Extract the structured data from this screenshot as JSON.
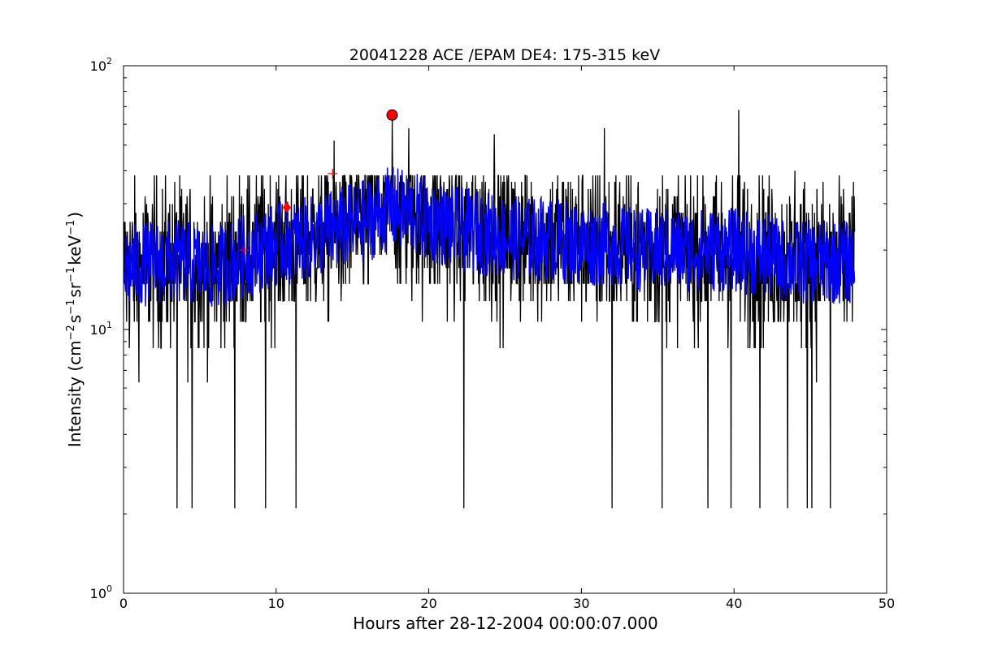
{
  "chart_data": {
    "type": "line",
    "title": "20041228 ACE /EPAM DE4: 175-315 keV",
    "xlabel": "Hours after 28-12-2004 00:00:07.000",
    "ylabel": "Intensity (cm",
    "ylabel_parts": [
      "Intensity (cm",
      "−2",
      "s",
      "−1",
      "sr",
      "−1",
      "keV",
      "−1",
      ")"
    ],
    "xlim": [
      0,
      50
    ],
    "ylim": [
      1,
      100
    ],
    "yscale": "log",
    "x_ticks": [
      "0",
      "10",
      "20",
      "30",
      "40",
      "50"
    ],
    "y_ticks": [
      {
        "base": "10",
        "exp": "0"
      },
      {
        "base": "10",
        "exp": "1"
      },
      {
        "base": "10",
        "exp": "2"
      }
    ],
    "grid": false,
    "series": [
      {
        "role": "raw",
        "color": "#000000",
        "x_range": [
          0,
          47.9
        ],
        "typical_range": [
          6.3,
          36
        ],
        "x": [
          0.0,
          2.0,
          4.0,
          6.0,
          8.0,
          10.0,
          12.0,
          14.0,
          16.0,
          17.6,
          20.0,
          22.0,
          24.0,
          26.0,
          28.0,
          30.0,
          32.0,
          34.0,
          36.0,
          38.0,
          40.0,
          42.0,
          44.0,
          46.0,
          47.9
        ],
        "trend": [
          17,
          18,
          18,
          17,
          19,
          21,
          22,
          24,
          26,
          29,
          26,
          24,
          23,
          22,
          22,
          21,
          21,
          20,
          20,
          20,
          20,
          19,
          18,
          18,
          18
        ],
        "minima": [
          {
            "x": 3.5,
            "y": 2.1
          },
          {
            "x": 4.5,
            "y": 2.1
          },
          {
            "x": 7.3,
            "y": 2.1
          },
          {
            "x": 9.3,
            "y": 2.1
          },
          {
            "x": 11.3,
            "y": 2.1
          },
          {
            "x": 22.3,
            "y": 2.1
          },
          {
            "x": 32.0,
            "y": 2.1
          },
          {
            "x": 35.3,
            "y": 2.1
          },
          {
            "x": 38.3,
            "y": 2.1
          },
          {
            "x": 39.8,
            "y": 2.1
          },
          {
            "x": 41.7,
            "y": 2.1
          },
          {
            "x": 43.5,
            "y": 2.1
          },
          {
            "x": 44.8,
            "y": 2.1
          },
          {
            "x": 45.1,
            "y": 2.1
          },
          {
            "x": 46.3,
            "y": 2.1
          }
        ],
        "maxima": [
          {
            "x": 13.8,
            "y": 52
          },
          {
            "x": 17.6,
            "y": 65
          },
          {
            "x": 18.7,
            "y": 58
          },
          {
            "x": 24.3,
            "y": 55
          },
          {
            "x": 31.5,
            "y": 58
          },
          {
            "x": 40.3,
            "y": 68
          },
          {
            "x": 44.0,
            "y": 40
          }
        ]
      },
      {
        "role": "smoothed",
        "color": "#0000ff",
        "x": [
          0.0,
          2.0,
          4.0,
          6.0,
          8.0,
          10.0,
          12.0,
          14.0,
          16.0,
          17.6,
          20.0,
          22.0,
          24.0,
          26.0,
          28.0,
          30.0,
          32.0,
          34.0,
          36.0,
          38.0,
          40.0,
          42.0,
          44.0,
          46.0,
          47.9
        ],
        "y": [
          17,
          18,
          18,
          17,
          19,
          21,
          22,
          24,
          26,
          29,
          26,
          24,
          23,
          22,
          22,
          21,
          21,
          20,
          20,
          20,
          20,
          19,
          18,
          18,
          18
        ],
        "band_halfwidth_factor": 1.45
      }
    ],
    "markers": [
      {
        "shape": "circle",
        "color": "#ff0000",
        "x": 17.6,
        "y": 65
      },
      {
        "shape": "diamond",
        "color": "#ff0000",
        "x": 10.7,
        "y": 29
      },
      {
        "shape": "plus",
        "color": "#ff0000",
        "x": 7.9,
        "y": 20
      },
      {
        "shape": "plus",
        "color": "#ff0000",
        "x": 13.7,
        "y": 39
      }
    ]
  }
}
